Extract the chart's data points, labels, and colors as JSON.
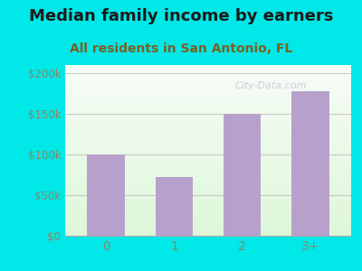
{
  "categories": [
    "0",
    "1",
    "2",
    "3+"
  ],
  "values": [
    100000,
    72000,
    150000,
    178000
  ],
  "bar_color": "#b8a0cc",
  "title": "Median family income by earners",
  "subtitle": "All residents in San Antonio, FL",
  "title_fontsize": 13.0,
  "subtitle_fontsize": 10.0,
  "title_color": "#1a1a1a",
  "subtitle_color": "#7a6020",
  "background_color": "#00e8e8",
  "plot_grad_topleft": "#e0f5e0",
  "plot_grad_topright": "#f5fdf5",
  "plot_grad_bottom": "#d8f0d8",
  "ylabel_ticks": [
    0,
    50000,
    100000,
    150000,
    200000
  ],
  "ylabel_labels": [
    "$0",
    "$50k",
    "$100k",
    "$150k",
    "$200k"
  ],
  "ylim": [
    0,
    210000
  ],
  "tick_color": "#888866",
  "grid_color": "#c8c8c8",
  "watermark": "City-Data.com"
}
